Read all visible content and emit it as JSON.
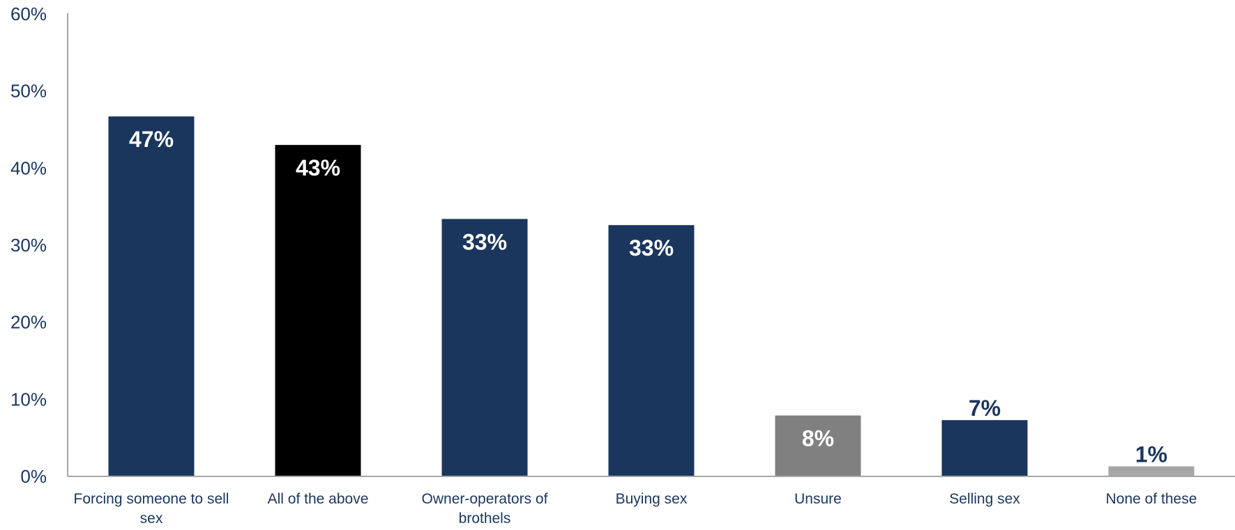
{
  "chart_data": {
    "type": "bar",
    "categories": [
      "Forcing someone to sell sex",
      "All of the above",
      "Owner-operators of brothels",
      "Buying sex",
      "Unsure",
      "Selling sex",
      "None of these"
    ],
    "category_lines": [
      [
        "Forcing someone to sell",
        "sex"
      ],
      [
        "All of the above"
      ],
      [
        "Owner-operators of",
        "brothels"
      ],
      [
        "Buying sex"
      ],
      [
        "Unsure"
      ],
      [
        "Selling sex"
      ],
      [
        "None of these"
      ]
    ],
    "values": [
      47,
      43,
      33,
      33,
      8,
      7,
      1
    ],
    "data_labels": [
      "47%",
      "43%",
      "33%",
      "33%",
      "8%",
      "7%",
      "1%"
    ],
    "bar_colors": [
      "#1a365d",
      "#000000",
      "#1a365d",
      "#1a365d",
      "#808080",
      "#1a365d",
      "#a6a6a6"
    ],
    "label_colors": [
      "#ffffff",
      "#ffffff",
      "#ffffff",
      "#ffffff",
      "#ffffff",
      "#1a365d",
      "#1a365d"
    ],
    "label_inside": [
      true,
      true,
      true,
      true,
      true,
      false,
      false
    ],
    "bar_values_precise": [
      46.7,
      43.0,
      33.4,
      32.6,
      7.9,
      7.3,
      1.3
    ],
    "ylim": [
      0,
      60
    ],
    "yticks": [
      0,
      10,
      20,
      30,
      40,
      50,
      60
    ],
    "ytick_labels": [
      "0%",
      "10%",
      "20%",
      "30%",
      "40%",
      "50%",
      "60%"
    ],
    "title": "",
    "xlabel": "",
    "ylabel": "",
    "grid": false,
    "legend": "none",
    "axis_color": "#a6a6a6",
    "tick_label_color": "#1a365d"
  }
}
